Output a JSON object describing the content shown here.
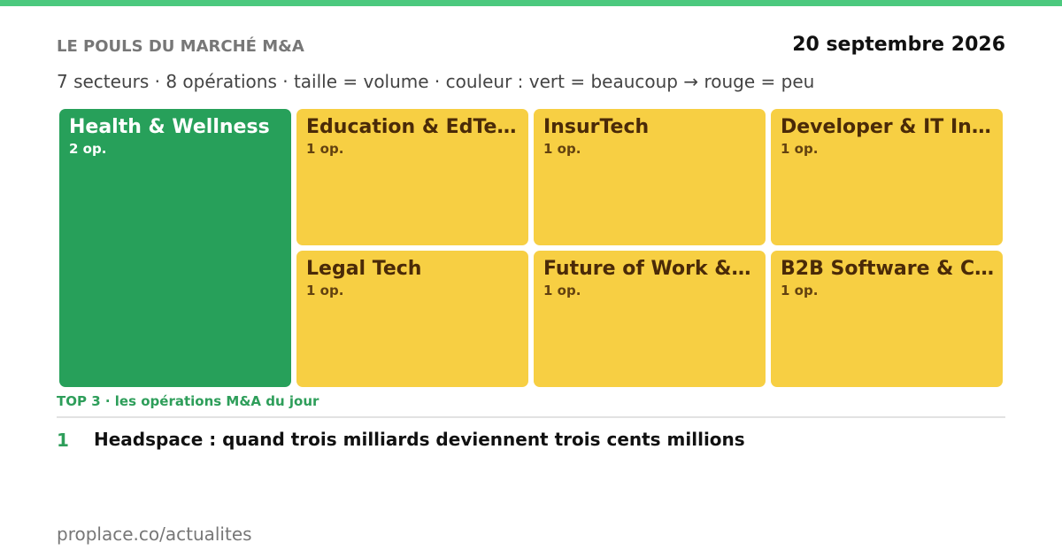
{
  "header": {
    "title": "LE POULS DU MARCHÉ M&A",
    "date": "20 septembre 2026",
    "subtitle": "7 secteurs · 8 opérations · taille = volume · couleur : vert = beaucoup → rouge = peu"
  },
  "tiles": [
    {
      "label": "Health & Wellness",
      "count": "2 op."
    },
    {
      "label": "Education & EdTe…",
      "count": "1 op."
    },
    {
      "label": "InsurTech",
      "count": "1 op."
    },
    {
      "label": "Developer & IT In…",
      "count": "1 op."
    },
    {
      "label": "Legal Tech",
      "count": "1 op."
    },
    {
      "label": "Future of Work &…",
      "count": "1 op."
    },
    {
      "label": "B2B Software & C…",
      "count": "1 op."
    }
  ],
  "top": {
    "heading": "TOP 3 · les opérations M&A du jour",
    "items": [
      {
        "rank": "1",
        "title": "Headspace : quand trois milliards deviennent trois cents millions"
      }
    ]
  },
  "footer": "proplace.co/actualites"
}
